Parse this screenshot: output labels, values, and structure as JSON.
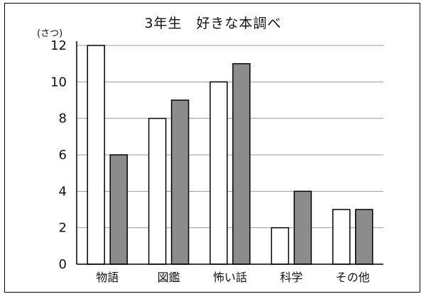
{
  "chart_data": {
    "type": "bar",
    "title": "3年生　好きな本調べ",
    "y_unit": "(さつ)",
    "categories": [
      "物語",
      "図鑑",
      "怖い話",
      "科学",
      "その他"
    ],
    "series": [
      {
        "values": [
          12,
          8,
          10,
          2,
          3
        ],
        "color": "#ffffff"
      },
      {
        "values": [
          6,
          9,
          11,
          4,
          3
        ],
        "color": "#8c8c8c"
      }
    ],
    "ylim": [
      0,
      12
    ],
    "yticks": [
      0,
      2,
      4,
      6,
      8,
      10,
      12
    ],
    "grid": true,
    "legend": "none"
  }
}
